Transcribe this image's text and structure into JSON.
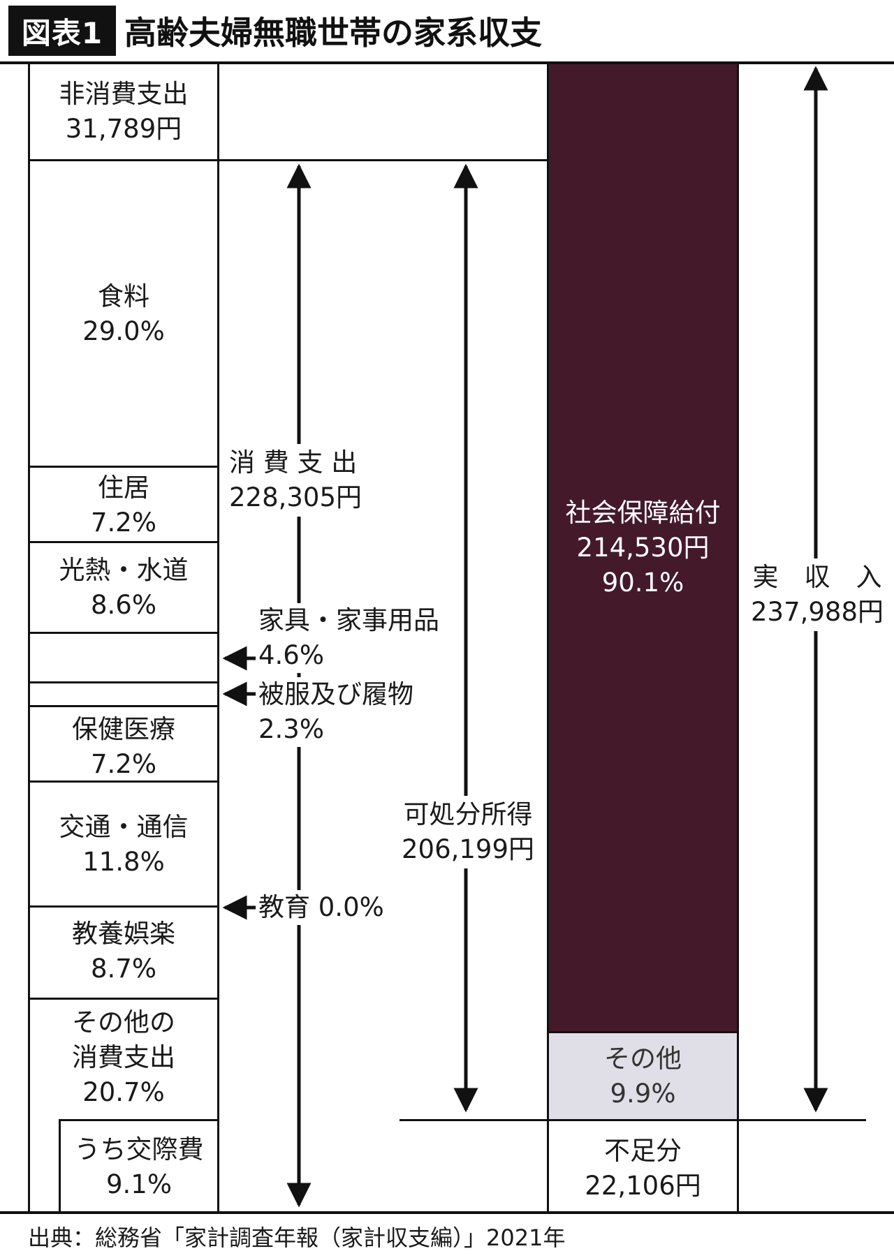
{
  "header": {
    "badge": "図表1",
    "title": "高齢夫婦無職世帯の家系収支"
  },
  "expenditure_column": {
    "non_consumption": {
      "name": "非消費支出",
      "amount": "31,789円"
    },
    "items": [
      {
        "name": "食料",
        "pct": "29.0%"
      },
      {
        "name": "住居",
        "pct": "7.2%"
      },
      {
        "name": "光熱・水道",
        "pct": "8.6%"
      },
      {
        "name": "保健医療",
        "pct": "7.2%"
      },
      {
        "name": "交通・通信",
        "pct": "11.8%"
      },
      {
        "name": "教養娯楽",
        "pct": "8.7%"
      }
    ],
    "other": {
      "line1": "その他の",
      "line2": "消費支出",
      "pct": "20.7%"
    },
    "sub_other": {
      "name": "うち交際費",
      "pct": "9.1%"
    }
  },
  "pointers": [
    {
      "line1": "家具・家事用品",
      "line2": "4.6%"
    },
    {
      "line1": "被服及び履物",
      "line2": "2.3%"
    },
    {
      "line1": "教育 0.0%"
    }
  ],
  "consumption_total": {
    "name": "消 費 支 出",
    "amount": "228,305円"
  },
  "disposable_income": {
    "name": "可処分所得",
    "amount": "206,199円"
  },
  "income_column": {
    "social_security": {
      "name": "社会保障給付",
      "amount": "214,530円",
      "pct": "90.1%"
    },
    "other": {
      "name": "その他",
      "pct": "9.9%"
    },
    "shortfall": {
      "name": "不足分",
      "amount": "22,106円"
    }
  },
  "actual_income": {
    "name": "実　収　入",
    "amount": "237,988円"
  },
  "source": "出典：総務省「家計調査年報（家計収支編）」2021年",
  "colors": {
    "social_security": "#44192a",
    "other": "#e0dfe8",
    "line": "#111111"
  }
}
